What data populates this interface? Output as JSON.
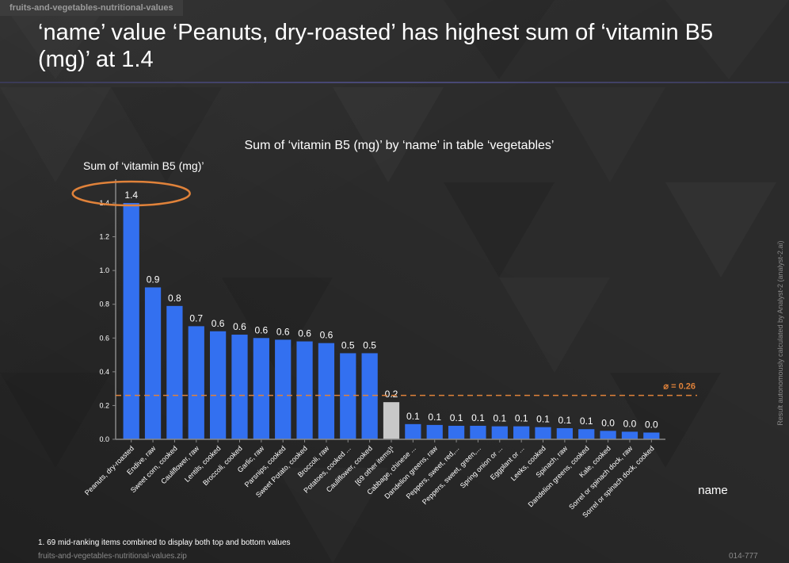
{
  "header": {
    "dataset_tab": "fruits-and-vegetables-nutritional-values",
    "headline": "‘name’ value ‘Peanuts, dry-roasted’ has highest sum of ‘vitamin B5 (mg)’ at 1.4"
  },
  "footer": {
    "footnote": "1. 69 mid-ranking items combined to display both top and bottom values",
    "source": "fruits-and-vegetables-nutritional-values.zip",
    "code": "014-777"
  },
  "side_note": "Result autonomously calculated by Analyst-2 (analyst-2.ai)",
  "colors": {
    "bar": "#3370f0",
    "bar_other": "#c8c8c8",
    "average": "#e0823a",
    "highlight": "#e0823a",
    "axis": "#888888"
  },
  "chart_data": {
    "type": "bar",
    "title": "Sum of ‘vitamin B5 (mg)’ by ‘name’ in table ‘vegetables’",
    "ylabel": "Sum of ‘vitamin B5 (mg)’",
    "xlabel": "name",
    "ylim": [
      0,
      1.4
    ],
    "yticks": [
      "0.0",
      "0.2",
      "0.4",
      "0.6",
      "0.8",
      "1.0",
      "1.2",
      "1.4"
    ],
    "average_label": "⌀ = 0.26",
    "average_value": 0.26,
    "categories": [
      "Peanuts, dry-roasted",
      "Endive, raw",
      "Sweet corn, cooked",
      "Cauliflower, raw",
      "Lentils, cooked",
      "Broccoli, cooked",
      "Garlic, raw",
      "Parsnips, cooked",
      "Sweet Potato, cooked",
      "Broccoli, raw",
      "Potatoes, cooked ...",
      "Cauliflower, cooked",
      "[69 other items]¹",
      "Cabbage, chinese ...",
      "Dandelion greens, raw",
      "Peppers, sweet, red,...",
      "Peppers, sweet, green,...",
      "Spring onion or ...",
      "Eggplant or ...",
      "Leeks, cooked",
      "Spinach, raw",
      "Dandelion greens, cooked",
      "Kale, cooked",
      "Sorrel or spinach dock, raw",
      "Sorrel or spinach dock, cooked"
    ],
    "values": [
      1.4,
      0.9,
      0.79,
      0.67,
      0.64,
      0.62,
      0.6,
      0.59,
      0.58,
      0.57,
      0.51,
      0.51,
      0.22,
      0.09,
      0.085,
      0.08,
      0.08,
      0.077,
      0.077,
      0.072,
      0.066,
      0.06,
      0.05,
      0.045,
      0.04
    ],
    "value_labels": [
      "1.4",
      "0.9",
      "0.8",
      "0.7",
      "0.6",
      "0.6",
      "0.6",
      "0.6",
      "0.6",
      "0.6",
      "0.5",
      "0.5",
      "0.2",
      "0.1",
      "0.1",
      "0.1",
      "0.1",
      "0.1",
      "0.1",
      "0.1",
      "0.1",
      "0.1",
      "0.0",
      "0.0",
      "0.0"
    ],
    "other_index": 12,
    "highlight_index": 0
  }
}
